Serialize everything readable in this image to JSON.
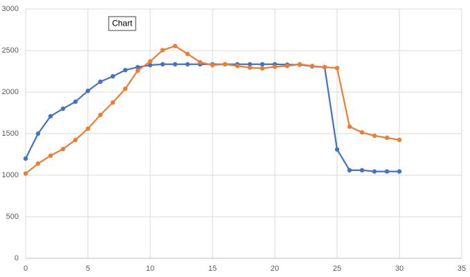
{
  "chart_data": {
    "type": "scatter-line",
    "title": "Chart",
    "x": [
      0,
      1,
      2,
      3,
      4,
      5,
      6,
      7,
      8,
      9,
      10,
      11,
      12,
      13,
      14,
      15,
      16,
      17,
      18,
      19,
      20,
      21,
      22,
      23,
      24,
      25,
      26,
      27,
      28,
      29,
      30
    ],
    "series": [
      {
        "color": "#4472c4",
        "values": [
          1200,
          1500,
          1710,
          1800,
          1885,
          2015,
          2125,
          2190,
          2265,
          2300,
          2325,
          2335,
          2335,
          2335,
          2335,
          2335,
          2335,
          2335,
          2335,
          2335,
          2335,
          2330,
          2330,
          2310,
          2300,
          1310,
          1060,
          1060,
          1045,
          1045,
          1045
        ]
      },
      {
        "color": "#ed7d31",
        "values": [
          1020,
          1140,
          1235,
          1315,
          1425,
          1560,
          1725,
          1875,
          2040,
          2260,
          2370,
          2505,
          2555,
          2460,
          2360,
          2325,
          2335,
          2315,
          2295,
          2285,
          2305,
          2315,
          2335,
          2315,
          2300,
          2290,
          1585,
          1515,
          1475,
          1450,
          1425
        ]
      }
    ],
    "xlim": [
      0,
      35
    ],
    "xticks": [
      0,
      5,
      10,
      15,
      20,
      25,
      30,
      35
    ],
    "ylim": [
      0,
      3000
    ],
    "yticks": [
      0,
      500,
      1000,
      1500,
      2000,
      2500,
      3000
    ],
    "grid": true
  }
}
